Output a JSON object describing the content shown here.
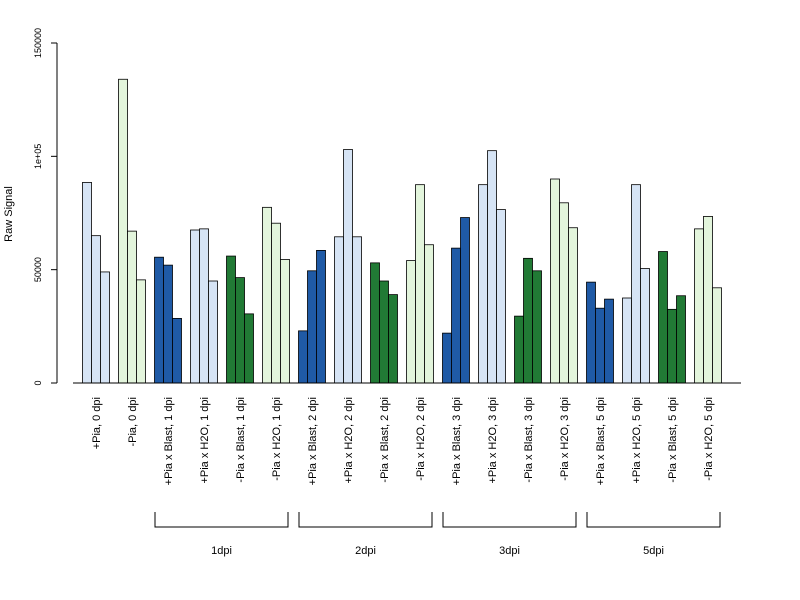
{
  "chart_data": {
    "type": "bar",
    "ylabel": "Raw Signal",
    "ylim": [
      0,
      150000
    ],
    "y_ticks": [
      0,
      50000,
      100000,
      150000
    ],
    "y_tick_labels": [
      "0",
      "50000",
      "1e+05",
      "150000"
    ],
    "colors": {
      "plus_pia_blast": "#1f5aa6",
      "plus_pia_h2o": "#d6e4f5",
      "minus_pia_blast": "#217a35",
      "minus_pia_h2o": "#e3f5dc"
    },
    "categories": [
      {
        "label": "+Pia, 0 dpi",
        "color": "plus_pia_h2o",
        "values": [
          88500,
          65000,
          49000
        ]
      },
      {
        "label": "-Pia, 0 dpi",
        "color": "minus_pia_h2o",
        "values": [
          134000,
          67000,
          45500
        ]
      },
      {
        "label": "+Pia x Blast, 1 dpi",
        "color": "plus_pia_blast",
        "values": [
          55500,
          52000,
          28500
        ]
      },
      {
        "label": "+Pia x H2O, 1 dpi",
        "color": "plus_pia_h2o",
        "values": [
          67500,
          68000,
          45000
        ]
      },
      {
        "label": "-Pia x Blast, 1 dpi",
        "color": "minus_pia_blast",
        "values": [
          56000,
          46500,
          30500
        ]
      },
      {
        "label": "-Pia x H2O, 1 dpi",
        "color": "minus_pia_h2o",
        "values": [
          77500,
          70500,
          54500
        ]
      },
      {
        "label": "+Pia x Blast, 2 dpi",
        "color": "plus_pia_blast",
        "values": [
          23000,
          49500,
          58500
        ]
      },
      {
        "label": "+Pia x H2O, 2 dpi",
        "color": "plus_pia_h2o",
        "values": [
          64500,
          103000,
          64500
        ]
      },
      {
        "label": "-Pia x Blast, 2 dpi",
        "color": "minus_pia_blast",
        "values": [
          53000,
          45000,
          39000
        ]
      },
      {
        "label": "-Pia x H2O, 2 dpi",
        "color": "minus_pia_h2o",
        "values": [
          54000,
          87500,
          61000
        ]
      },
      {
        "label": "+Pia x Blast, 3 dpi",
        "color": "plus_pia_blast",
        "values": [
          22000,
          59500,
          73000
        ]
      },
      {
        "label": "+Pia x H2O, 3 dpi",
        "color": "plus_pia_h2o",
        "values": [
          87500,
          102500,
          76500
        ]
      },
      {
        "label": "-Pia x Blast, 3 dpi",
        "color": "minus_pia_blast",
        "values": [
          29500,
          55000,
          49500
        ]
      },
      {
        "label": "-Pia x H2O, 3 dpi",
        "color": "minus_pia_h2o",
        "values": [
          90000,
          79500,
          68500
        ]
      },
      {
        "label": "+Pia x Blast, 5 dpi",
        "color": "plus_pia_blast",
        "values": [
          44500,
          33000,
          37000
        ]
      },
      {
        "label": "+Pia x H2O, 5 dpi",
        "color": "plus_pia_h2o",
        "values": [
          37500,
          87500,
          50500
        ]
      },
      {
        "label": "-Pia x Blast, 5 dpi",
        "color": "minus_pia_blast",
        "values": [
          58000,
          32500,
          38500
        ]
      },
      {
        "label": "-Pia x H2O, 5 dpi",
        "color": "minus_pia_h2o",
        "values": [
          68000,
          73500,
          42000
        ]
      }
    ],
    "groups": [
      {
        "label": "1dpi",
        "first_category": 2,
        "last_category": 5
      },
      {
        "label": "2dpi",
        "first_category": 6,
        "last_category": 9
      },
      {
        "label": "3dpi",
        "first_category": 10,
        "last_category": 13
      },
      {
        "label": "5dpi",
        "first_category": 14,
        "last_category": 17
      }
    ]
  }
}
